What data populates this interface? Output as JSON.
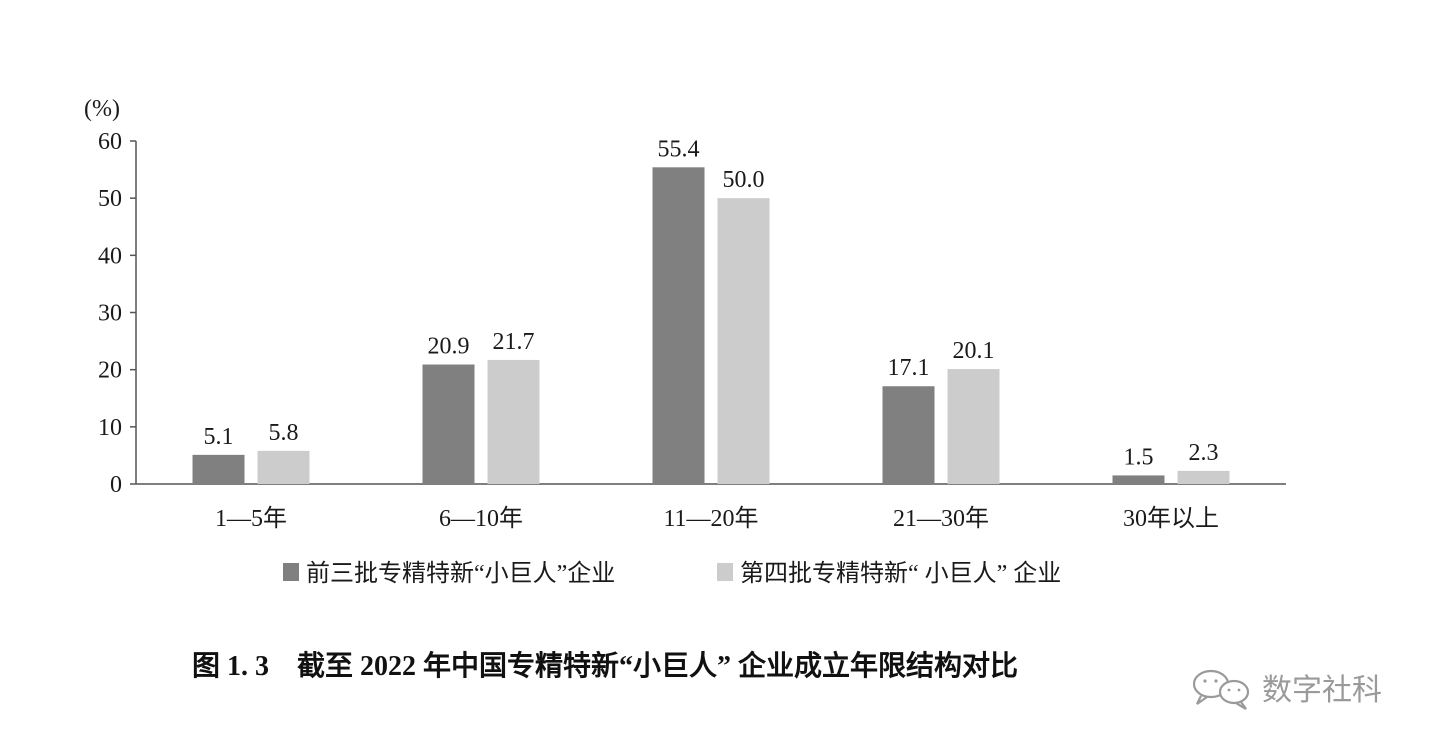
{
  "chart_data": {
    "type": "bar",
    "y_unit_label": "(%)",
    "categories": [
      "1—5年",
      "6—10年",
      "11—20年",
      "21—30年",
      "30年以上"
    ],
    "series": [
      {
        "name": "前三批专精特新“小巨人”企业",
        "color": "#808080",
        "values": [
          5.1,
          20.9,
          55.4,
          17.1,
          1.5
        ]
      },
      {
        "name": "第四批专精特新“ 小巨人” 企业",
        "color": "#cccccc",
        "values": [
          5.8,
          21.7,
          50.0,
          20.1,
          2.3
        ]
      }
    ],
    "ylim": [
      0,
      60
    ],
    "yticks": [
      0,
      10,
      20,
      30,
      40,
      50,
      60
    ],
    "legend_position": "bottom",
    "grid": false
  },
  "caption": "图 1. 3　截至 2022 年中国专精特新“小巨人” 企业成立年限结构对比",
  "watermark": "数字社科"
}
